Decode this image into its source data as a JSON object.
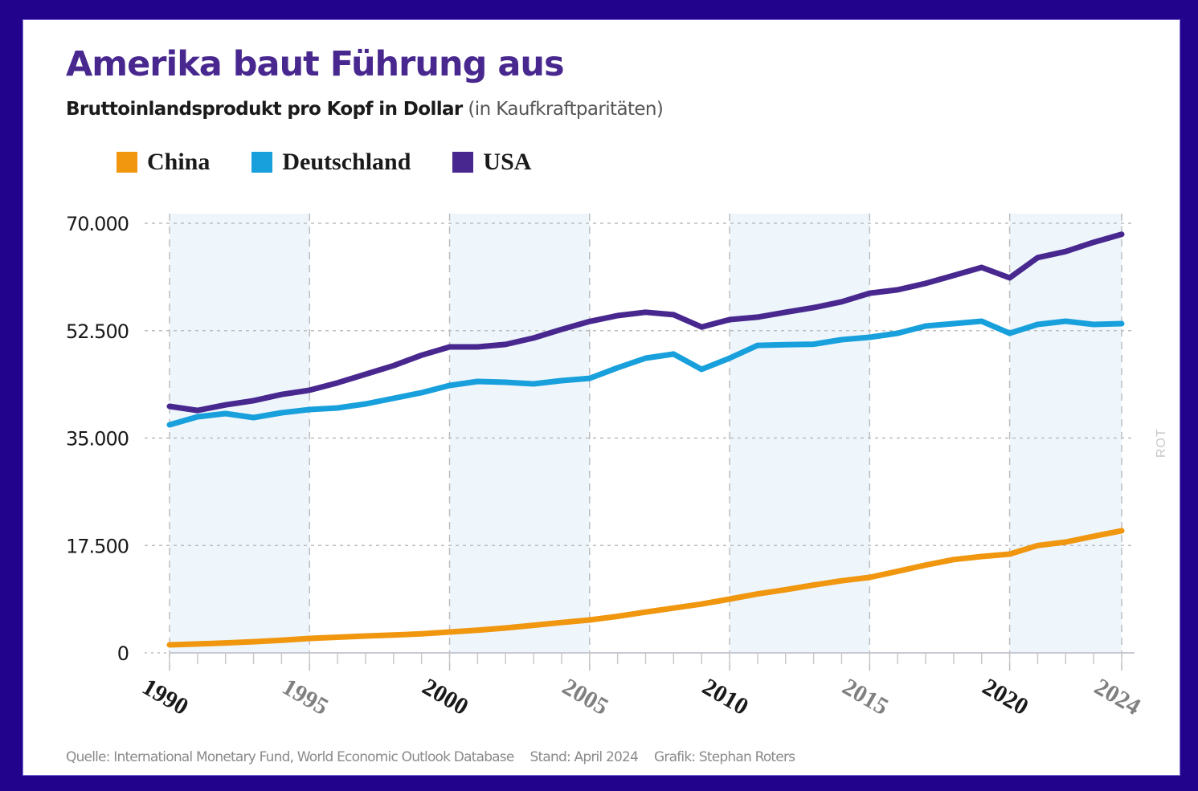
{
  "title": "Amerika baut Führung aus",
  "subtitle_bold": "Bruttoinlandsprodukt pro Kopf in Dollar",
  "subtitle_light": "(in Kaufkraftparitäten)",
  "watermark": "ROT",
  "footer": {
    "source": "Quelle: International Monetary Fund, World Economic Outlook Database",
    "date": "Stand: April 2024",
    "credit": "Grafik: Stephan Roters"
  },
  "colors": {
    "border": "#22048c",
    "title": "#48288f",
    "band": "#eef6fc",
    "grid": "#bdbdbd"
  },
  "chart_data": {
    "type": "line",
    "title": "Amerika baut Führung aus",
    "subtitle": "Bruttoinlandsprodukt pro Kopf in Dollar (in Kaufkraftparitäten)",
    "xlabel": "",
    "ylabel": "",
    "xlim": [
      1990,
      2024
    ],
    "ylim": [
      0,
      70000
    ],
    "yticks": [
      0,
      17500,
      35000,
      52500,
      70000
    ],
    "ytick_labels": [
      "0",
      "17.500",
      "35.000",
      "52.500",
      "70.000"
    ],
    "xticks": [
      1990,
      1995,
      2000,
      2005,
      2010,
      2015,
      2020,
      2024
    ],
    "xtick_labels": [
      "1990",
      "1995",
      "2000",
      "2005",
      "2010",
      "2015",
      "2020",
      "2024"
    ],
    "xtick_emphasis": [
      true,
      false,
      true,
      false,
      true,
      false,
      true,
      false
    ],
    "shaded_bands": [
      [
        1990,
        1995
      ],
      [
        2000,
        2005
      ],
      [
        2010,
        2015
      ],
      [
        2020,
        2024
      ]
    ],
    "grid": true,
    "legend_position": "top-left",
    "x": [
      1990,
      1991,
      1992,
      1993,
      1994,
      1995,
      1996,
      1997,
      1998,
      1999,
      2000,
      2001,
      2002,
      2003,
      2004,
      2005,
      2006,
      2007,
      2008,
      2009,
      2010,
      2011,
      2012,
      2013,
      2014,
      2015,
      2016,
      2017,
      2018,
      2019,
      2020,
      2021,
      2022,
      2023,
      2024
    ],
    "series": [
      {
        "name": "China",
        "color": "#f0960f",
        "values": [
          1310,
          1450,
          1620,
          1820,
          2050,
          2350,
          2550,
          2750,
          2900,
          3100,
          3400,
          3700,
          4050,
          4500,
          4950,
          5360,
          5950,
          6650,
          7300,
          7950,
          8770,
          9600,
          10300,
          11050,
          11750,
          12300,
          13300,
          14300,
          15200,
          15700,
          16100,
          17500,
          18050,
          19000,
          19900
        ]
      },
      {
        "name": "Deutschland",
        "color": "#18a0dc",
        "values": [
          37160,
          38470,
          38990,
          38340,
          39120,
          39650,
          39910,
          40560,
          41480,
          42390,
          43570,
          44220,
          44090,
          43830,
          44350,
          44740,
          46450,
          48020,
          48680,
          46200,
          48020,
          50100,
          50200,
          50300,
          51030,
          51420,
          52070,
          53250,
          53640,
          54040,
          52070,
          53510,
          54040,
          53510,
          53640
        ]
      },
      {
        "name": "USA",
        "color": "#48288f",
        "values": [
          40170,
          39500,
          40400,
          41100,
          42100,
          42800,
          44000,
          45400,
          46800,
          48500,
          49850,
          49850,
          50250,
          51300,
          52700,
          54000,
          54950,
          55500,
          55100,
          53100,
          54300,
          54700,
          55500,
          56250,
          57200,
          58600,
          59150,
          60200,
          61500,
          62800,
          61100,
          64400,
          65400,
          66900,
          68200
        ]
      }
    ]
  }
}
